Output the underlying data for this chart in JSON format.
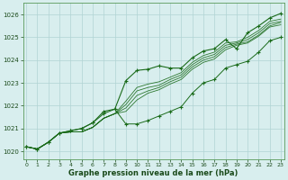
{
  "xlabel": "Graphe pression niveau de la mer (hPa)",
  "x": [
    0,
    1,
    2,
    3,
    4,
    5,
    6,
    7,
    8,
    9,
    10,
    11,
    12,
    13,
    14,
    15,
    16,
    17,
    18,
    19,
    20,
    21,
    22,
    23
  ],
  "line_main": [
    1020.2,
    1020.1,
    1020.4,
    1020.8,
    1020.9,
    1021.0,
    1021.25,
    1021.75,
    1021.85,
    1023.1,
    1023.55,
    1023.6,
    1023.75,
    1023.65,
    1023.65,
    1024.1,
    1024.4,
    1024.5,
    1024.9,
    1024.5,
    1025.2,
    1025.5,
    1025.85,
    1026.05
  ],
  "line_low1": [
    1020.2,
    1020.1,
    1020.4,
    1020.8,
    1020.85,
    1020.85,
    1021.05,
    1021.45,
    1021.65,
    1021.75,
    1022.25,
    1022.55,
    1022.7,
    1022.95,
    1023.15,
    1023.6,
    1023.9,
    1024.05,
    1024.45,
    1024.65,
    1024.75,
    1025.05,
    1025.45,
    1025.55
  ],
  "line_low2": [
    1020.2,
    1020.1,
    1020.4,
    1020.8,
    1020.85,
    1020.85,
    1021.05,
    1021.45,
    1021.65,
    1021.9,
    1022.45,
    1022.65,
    1022.8,
    1023.05,
    1023.25,
    1023.7,
    1024.0,
    1024.15,
    1024.55,
    1024.7,
    1024.8,
    1025.1,
    1025.5,
    1025.65
  ],
  "line_low3": [
    1020.2,
    1020.1,
    1020.4,
    1020.8,
    1020.85,
    1020.85,
    1021.05,
    1021.45,
    1021.65,
    1022.05,
    1022.65,
    1022.8,
    1022.9,
    1023.15,
    1023.35,
    1023.8,
    1024.1,
    1024.25,
    1024.65,
    1024.75,
    1024.9,
    1025.2,
    1025.6,
    1025.7
  ],
  "line_low4": [
    1020.2,
    1020.1,
    1020.4,
    1020.8,
    1020.85,
    1020.85,
    1021.05,
    1021.45,
    1021.65,
    1022.2,
    1022.8,
    1022.95,
    1023.05,
    1023.25,
    1023.45,
    1023.9,
    1024.2,
    1024.35,
    1024.75,
    1024.8,
    1025.0,
    1025.3,
    1025.7,
    1025.8
  ],
  "line_marker2": [
    1020.2,
    1020.1,
    1020.4,
    1020.8,
    1020.9,
    1021.0,
    1021.25,
    1021.65,
    1021.85,
    1021.2,
    1021.2,
    1021.35,
    1021.55,
    1021.75,
    1021.95,
    1022.55,
    1023.0,
    1023.15,
    1023.65,
    1023.8,
    1023.95,
    1024.35,
    1024.85,
    1025.0
  ],
  "bg_color": "#d8eeee",
  "grid_color": "#b0d4d4",
  "line_color": "#1a6b1a",
  "ylim": [
    1019.65,
    1026.5
  ],
  "yticks": [
    1020,
    1021,
    1022,
    1023,
    1024,
    1025,
    1026
  ],
  "xticks": [
    0,
    1,
    2,
    3,
    4,
    5,
    6,
    7,
    8,
    9,
    10,
    11,
    12,
    13,
    14,
    15,
    16,
    17,
    18,
    19,
    20,
    21,
    22,
    23
  ]
}
